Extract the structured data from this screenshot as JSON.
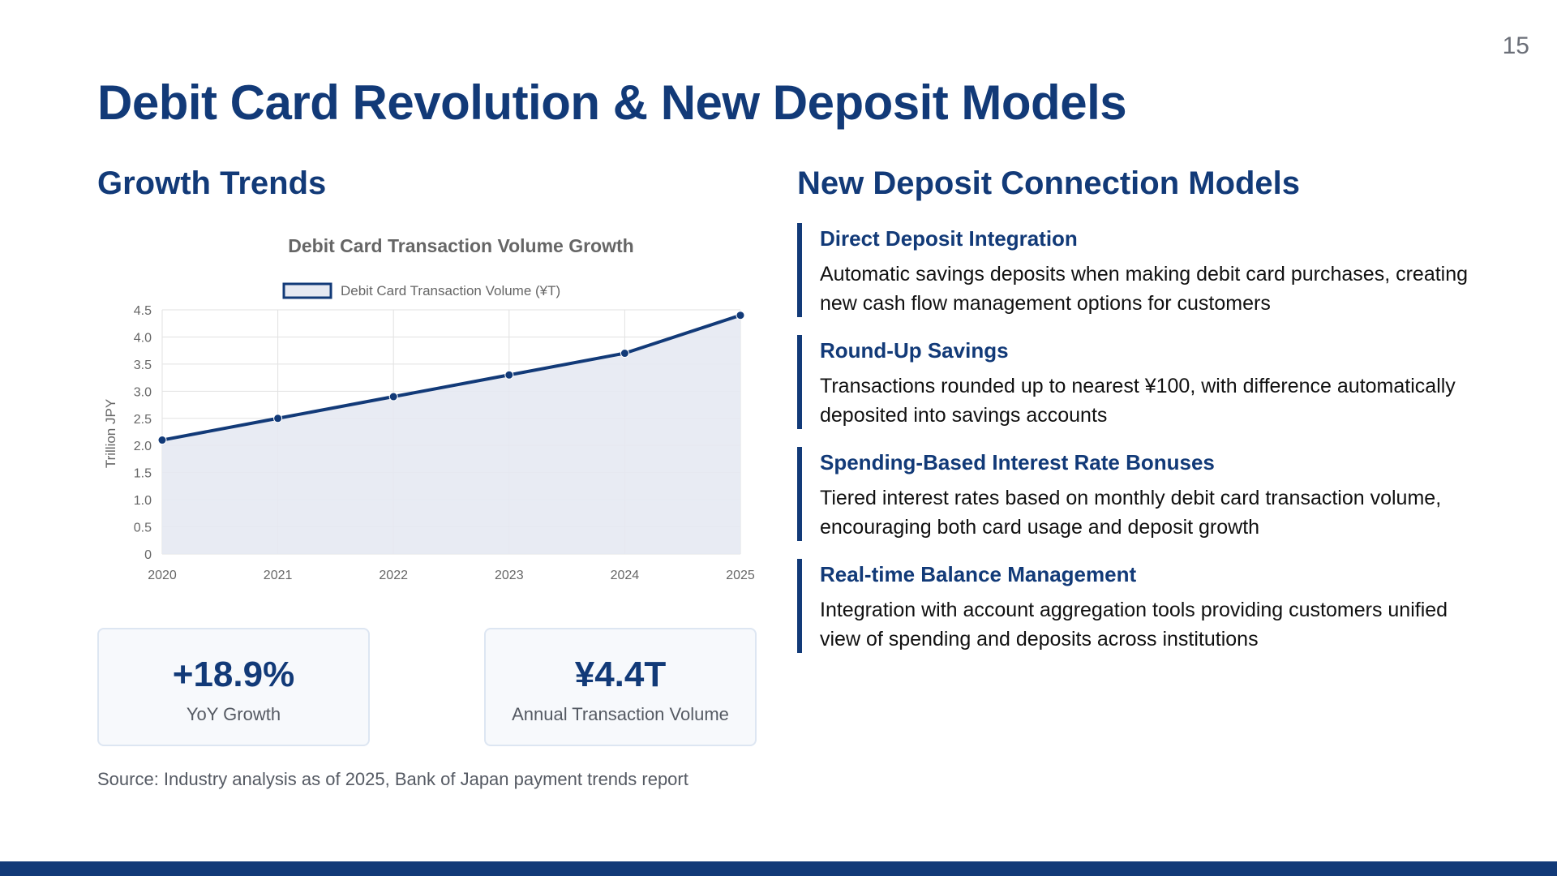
{
  "page_number": "15",
  "title": "Debit Card Revolution & New Deposit Models",
  "left": {
    "heading": "Growth Trends",
    "stats": [
      {
        "value": "+18.9%",
        "label": "YoY Growth"
      },
      {
        "value": "¥4.4T",
        "label": "Annual Transaction Volume"
      }
    ],
    "source": "Source: Industry analysis as of 2025, Bank of Japan payment trends report"
  },
  "right": {
    "heading": "New Deposit Connection Models",
    "items": [
      {
        "title": "Direct Deposit Integration",
        "desc": "Automatic savings deposits when making debit card purchases, creating new cash flow management options for customers"
      },
      {
        "title": "Round-Up Savings",
        "desc": "Transactions rounded up to nearest ¥100, with difference automatically deposited into savings accounts"
      },
      {
        "title": "Spending-Based Interest Rate Bonuses",
        "desc": "Tiered interest rates based on monthly debit card transaction volume, encouraging both card usage and deposit growth"
      },
      {
        "title": "Real-time Balance Management",
        "desc": "Integration with account aggregation tools providing customers unified view of spending and deposits across institutions"
      }
    ]
  },
  "chart_data": {
    "type": "area",
    "title": "Debit Card Transaction Volume Growth",
    "x": [
      "2020",
      "2021",
      "2022",
      "2023",
      "2024",
      "2025"
    ],
    "series": [
      {
        "name": "Debit Card Transaction Volume (¥T)",
        "values": [
          2.1,
          2.5,
          2.9,
          3.3,
          3.7,
          4.4
        ]
      }
    ],
    "xlabel": "",
    "ylabel": "Trillion JPY",
    "ylim": [
      0,
      4.5
    ],
    "yticks": [
      "0",
      "0.5",
      "1.0",
      "1.5",
      "2.0",
      "2.5",
      "3.0",
      "3.5",
      "4.0",
      "4.5"
    ],
    "grid": true,
    "legend": "top-center",
    "colors": {
      "line": "#123a78",
      "fill": "#e6e9f2",
      "grid": "#e2e2e2",
      "text": "#666666"
    }
  }
}
